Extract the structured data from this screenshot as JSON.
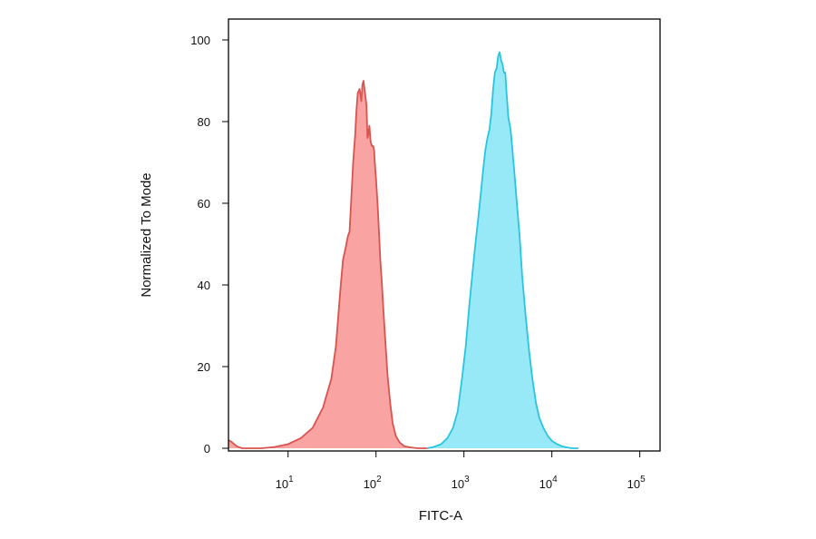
{
  "chart_data": {
    "type": "area",
    "title": "",
    "xlabel": "FITC-A",
    "ylabel": "Normalized To Mode",
    "xscale": "log",
    "xlim": [
      2.1,
      170000
    ],
    "ylim": [
      0,
      100
    ],
    "grid": false,
    "legend": "none",
    "x_ticks": [
      {
        "value": 10,
        "base": "10",
        "exp": "1"
      },
      {
        "value": 100,
        "base": "10",
        "exp": "2"
      },
      {
        "value": 1000,
        "base": "10",
        "exp": "3"
      },
      {
        "value": 10000,
        "base": "10",
        "exp": "4"
      },
      {
        "value": 100000,
        "base": "10",
        "exp": "5"
      }
    ],
    "y_ticks": [
      {
        "value": 0,
        "label": "0"
      },
      {
        "value": 20,
        "label": "20"
      },
      {
        "value": 40,
        "label": "40"
      },
      {
        "value": 60,
        "label": "60"
      },
      {
        "value": 80,
        "label": "80"
      },
      {
        "value": 100,
        "label": "100"
      }
    ],
    "series": [
      {
        "color": "#d9534f",
        "fill": "#f9a3a3",
        "x": [
          2.1,
          2.3,
          2.6,
          3.0,
          5.0,
          7.0,
          10,
          14,
          19,
          25,
          31,
          35,
          39,
          42,
          45,
          48,
          50,
          52,
          55,
          58,
          60,
          62,
          65,
          68,
          70,
          72,
          75,
          78,
          80,
          82,
          84,
          87,
          90,
          93,
          95,
          97,
          100,
          104,
          108,
          112,
          117,
          122,
          128,
          135,
          145,
          155,
          168,
          185,
          210,
          250,
          300,
          380
        ],
        "values": [
          2,
          1.5,
          0.5,
          0,
          0,
          0.3,
          1.0,
          2.5,
          5,
          10,
          17,
          25,
          38,
          46,
          49,
          52,
          53,
          60,
          70,
          77,
          83,
          87,
          88,
          85,
          89,
          90,
          87,
          84,
          76,
          77,
          79,
          75,
          74,
          74,
          73,
          70,
          66,
          60,
          53,
          46,
          40,
          33,
          26,
          18,
          11,
          6,
          3,
          1.5,
          0.5,
          0.2,
          0,
          0
        ]
      },
      {
        "color": "#29c5df",
        "fill": "#98e9f8",
        "x": [
          380,
          450,
          550,
          650,
          750,
          850,
          950,
          1050,
          1150,
          1250,
          1350,
          1450,
          1550,
          1650,
          1750,
          1850,
          1950,
          2050,
          2150,
          2250,
          2350,
          2450,
          2550,
          2650,
          2750,
          2850,
          2950,
          3050,
          3200,
          3400,
          3600,
          3800,
          4000,
          4300,
          4600,
          5000,
          5500,
          6000,
          6600,
          7200,
          8000,
          9000,
          10000,
          11500,
          13000,
          15000,
          17000,
          20000
        ],
        "values": [
          0,
          0.3,
          1.0,
          2.5,
          5,
          9,
          17,
          25,
          35,
          43,
          50,
          56,
          62,
          68,
          73,
          76,
          78,
          82,
          88,
          92,
          93,
          96,
          97,
          95,
          94,
          92,
          92,
          87,
          81,
          78,
          72,
          66,
          60,
          52,
          42,
          33,
          24,
          17,
          11,
          7.5,
          5,
          3,
          1.8,
          1,
          0.5,
          0.2,
          0,
          0
        ]
      }
    ]
  }
}
